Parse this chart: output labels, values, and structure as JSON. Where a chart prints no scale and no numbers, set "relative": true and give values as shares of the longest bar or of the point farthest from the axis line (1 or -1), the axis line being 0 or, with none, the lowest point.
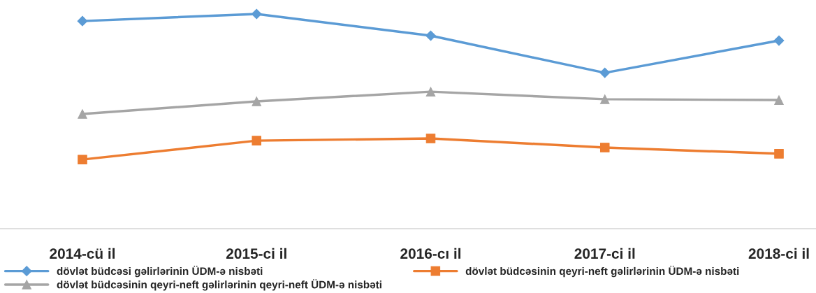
{
  "chart_data": {
    "type": "line",
    "relative": true,
    "categories": [
      "2014-cü il",
      "2015-ci il",
      "2016-cı il",
      "2017-ci il",
      "2018-ci il"
    ],
    "series": [
      {
        "name": "dövlət büdcəsi gəlirlərinin ÜDM-ə nisbəti",
        "color": "#5b9bd5",
        "marker": "diamond",
        "values": [
          0.967,
          1.0,
          0.899,
          0.726,
          0.876
        ]
      },
      {
        "name": "dövlət büdcəsinin qeyri-neft gəlirlərinin ÜDM-ə nisbəti",
        "color": "#ed7d31",
        "marker": "square",
        "values": [
          0.322,
          0.41,
          0.42,
          0.378,
          0.349
        ]
      },
      {
        "name": "dövlət büdcəsinin qeyri-neft gəlirlərinin qeyri-neft ÜDM-ə nisbəti",
        "color": "#a5a5a5",
        "marker": "triangle",
        "values": [
          0.534,
          0.593,
          0.638,
          0.603,
          0.599
        ]
      }
    ],
    "legend": "bottom",
    "grid": false
  }
}
